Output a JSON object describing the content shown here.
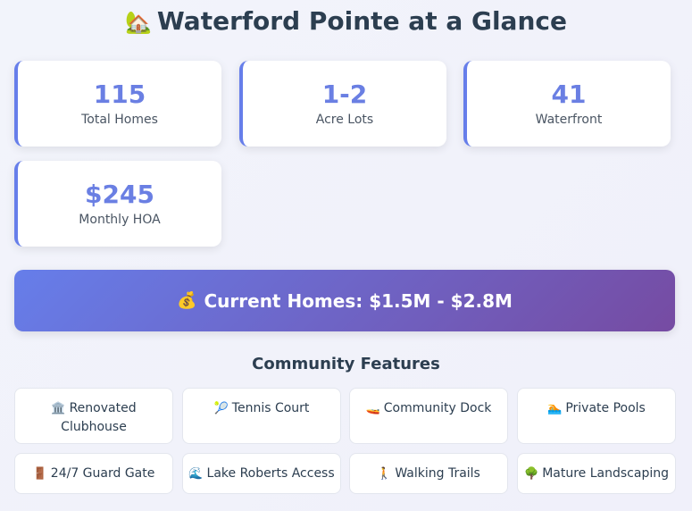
{
  "header": {
    "icon": "house-with-tree-icon",
    "icon_glyph": "🏡",
    "title": "Waterford Pointe at a Glance"
  },
  "stats": [
    {
      "value": "115",
      "label": "Total Homes"
    },
    {
      "value": "1-2",
      "label": "Acre Lots"
    },
    {
      "value": "41",
      "label": "Waterfront"
    },
    {
      "value": "$245",
      "label": "Monthly HOA"
    }
  ],
  "banner": {
    "icon": "money-bag-icon",
    "icon_glyph": "💰",
    "text": "Current Homes: $1.5M - $2.8M"
  },
  "features": {
    "title": "Community Features",
    "items": [
      {
        "icon": "classical-building-icon",
        "glyph": "🏛️",
        "label": "Renovated Clubhouse"
      },
      {
        "icon": "tennis-ball-icon",
        "glyph": "🎾",
        "label": "Tennis Court"
      },
      {
        "icon": "speedboat-icon",
        "glyph": "🚤",
        "label": "Community Dock"
      },
      {
        "icon": "swimmer-icon",
        "glyph": "🏊",
        "label": "Private Pools"
      },
      {
        "icon": "door-icon",
        "glyph": "🚪",
        "label": "24/7 Guard Gate"
      },
      {
        "icon": "water-wave-icon",
        "glyph": "🌊",
        "label": "Lake Roberts Access"
      },
      {
        "icon": "walking-person-icon",
        "glyph": "🚶",
        "label": "Walking Trails"
      },
      {
        "icon": "deciduous-tree-icon",
        "glyph": "🌳",
        "label": "Mature Landscaping"
      }
    ]
  },
  "colors": {
    "accent": "#667eea",
    "gradient_end": "#764ba2",
    "heading": "#2c3e50"
  }
}
